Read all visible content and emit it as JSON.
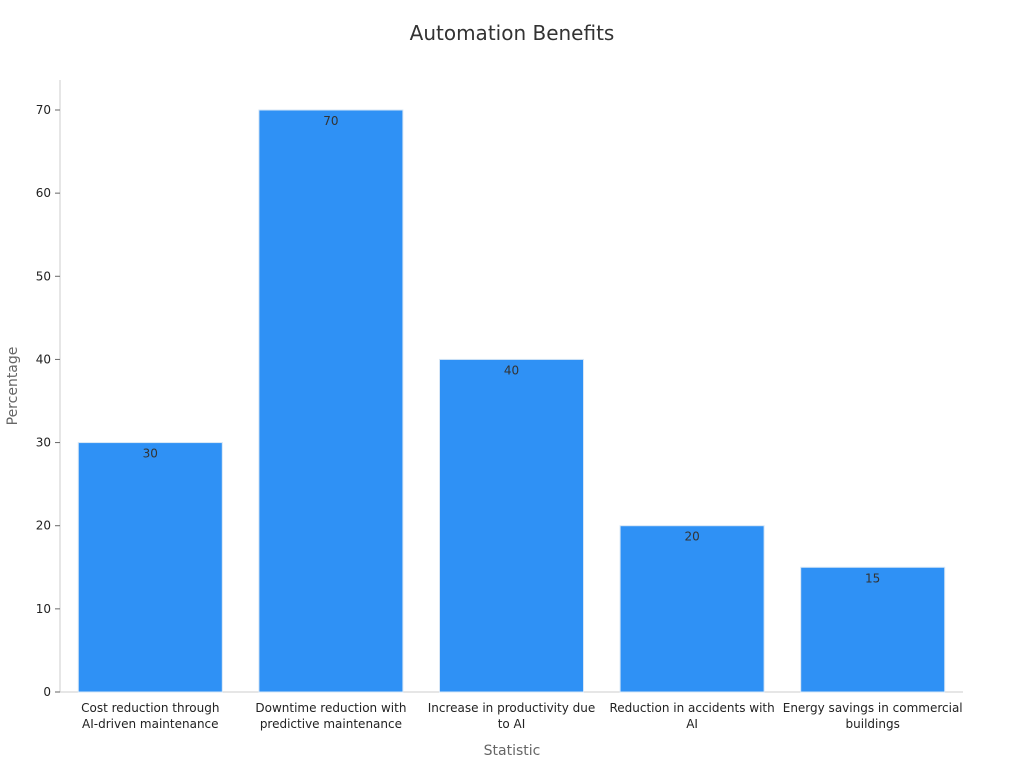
{
  "chart_data": {
    "type": "bar",
    "title": "Automation Benefits",
    "xlabel": "Statistic",
    "ylabel": "Percentage",
    "categories": [
      [
        "Cost reduction through",
        "AI-driven maintenance"
      ],
      [
        "Downtime reduction with",
        "predictive maintenance"
      ],
      [
        "Increase in productivity due",
        "to AI"
      ],
      [
        "Reduction in accidents with",
        "AI"
      ],
      [
        "Energy savings in commercial",
        "buildings"
      ]
    ],
    "values": [
      30,
      70,
      40,
      20,
      15
    ],
    "ylim": [
      0,
      70
    ],
    "yticks": [
      0,
      10,
      20,
      30,
      40,
      50,
      60,
      70
    ],
    "grid": false,
    "legend": "none",
    "colors": {
      "bar": "#2f91f5"
    }
  }
}
